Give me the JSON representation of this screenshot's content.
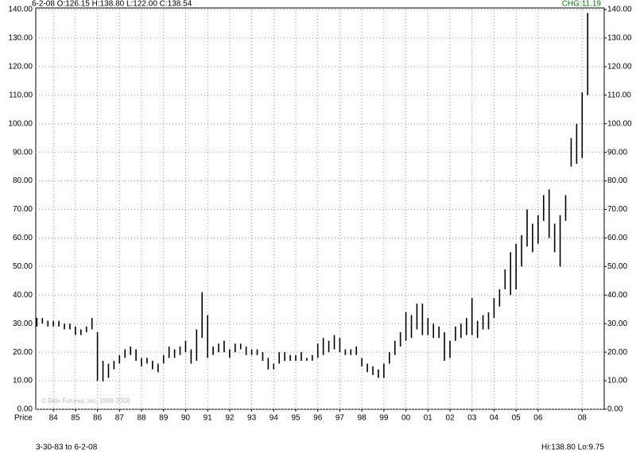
{
  "header": {
    "quote": "6-2-08 O:126.15 H:138.80 L:122.00 C:138.54",
    "change": "CHG:11.19"
  },
  "footer": {
    "range": "3-30-83 to 6-2-08",
    "extremes": "Hi:138.80 Lo:9.75"
  },
  "watermark": "© Bitte Futures, Inc. 1998-2008",
  "chart_data": {
    "type": "range-bar",
    "y_label": "Price",
    "color": "#000000",
    "grid": true,
    "x": [
      1983.25,
      1983.5,
      1983.75,
      1984.0,
      1984.25,
      1984.5,
      1984.75,
      1985.0,
      1985.25,
      1985.5,
      1985.75,
      1986.0,
      1986.25,
      1986.5,
      1986.75,
      1987.0,
      1987.25,
      1987.5,
      1987.75,
      1988.0,
      1988.25,
      1988.5,
      1988.75,
      1989.0,
      1989.25,
      1989.5,
      1989.75,
      1990.0,
      1990.25,
      1990.5,
      1990.75,
      1991.0,
      1991.25,
      1991.5,
      1991.75,
      1992.0,
      1992.25,
      1992.5,
      1992.75,
      1993.0,
      1993.25,
      1993.5,
      1993.75,
      1994.0,
      1994.25,
      1994.5,
      1994.75,
      1995.0,
      1995.25,
      1995.5,
      1995.75,
      1996.0,
      1996.25,
      1996.5,
      1996.75,
      1997.0,
      1997.25,
      1997.5,
      1997.75,
      1998.0,
      1998.25,
      1998.5,
      1998.75,
      1999.0,
      1999.25,
      1999.5,
      1999.75,
      2000.0,
      2000.25,
      2000.5,
      2000.75,
      2001.0,
      2001.25,
      2001.5,
      2001.75,
      2002.0,
      2002.25,
      2002.5,
      2002.75,
      2003.0,
      2003.25,
      2003.5,
      2003.75,
      2004.0,
      2004.25,
      2004.5,
      2004.75,
      2005.0,
      2005.25,
      2005.5,
      2005.75,
      2006.0,
      2006.25,
      2006.5,
      2006.75,
      2007.0,
      2007.25,
      2007.5,
      2007.75,
      2008.0,
      2008.25
    ],
    "high": [
      32,
      32,
      31,
      31,
      31,
      30,
      30,
      29,
      28,
      29,
      32,
      27,
      17,
      16,
      17,
      19,
      21,
      22,
      21,
      18,
      18,
      17,
      16,
      19,
      22,
      21,
      22,
      24,
      21,
      28,
      41,
      33,
      22,
      23,
      24,
      21,
      23,
      23,
      22,
      21,
      21,
      20,
      18,
      16,
      20,
      20,
      19,
      19,
      20,
      18,
      19,
      23,
      25,
      24,
      26,
      25,
      21,
      21,
      22,
      18,
      16,
      15,
      14,
      16,
      20,
      24,
      27,
      34,
      33,
      37,
      37,
      32,
      30,
      29,
      27,
      24,
      29,
      30,
      32,
      39,
      31,
      33,
      34,
      39,
      42,
      49,
      55,
      58,
      61,
      70,
      65,
      68,
      75,
      77,
      65,
      68,
      75,
      95,
      100,
      111,
      138.8
    ],
    "low": [
      29,
      30,
      29,
      29,
      29,
      28,
      28,
      26,
      26,
      27,
      28,
      10,
      9.75,
      11,
      14,
      16,
      18,
      19,
      17,
      15,
      16,
      14,
      13,
      16,
      18,
      18,
      19,
      20,
      16,
      17,
      25,
      18,
      19,
      20,
      20,
      18,
      20,
      21,
      19,
      19,
      19,
      17,
      14,
      14,
      16,
      17,
      17,
      17,
      17,
      17,
      17,
      18,
      19,
      20,
      21,
      20,
      19,
      19,
      19,
      15,
      13,
      12,
      11,
      11,
      16,
      19,
      22,
      24,
      25,
      28,
      26,
      26,
      25,
      25,
      17,
      18,
      24,
      25,
      26,
      26,
      25,
      28,
      28,
      32,
      36,
      42,
      40,
      42,
      50,
      57,
      55,
      58,
      66,
      60,
      55,
      50,
      66,
      85,
      86,
      88,
      110
    ],
    "xlim": [
      1983.2,
      2009.0
    ],
    "xticks": [
      {
        "value": 1984,
        "label": "84"
      },
      {
        "value": 1985,
        "label": "85"
      },
      {
        "value": 1986,
        "label": "86"
      },
      {
        "value": 1987,
        "label": "87"
      },
      {
        "value": 1988,
        "label": "88"
      },
      {
        "value": 1989,
        "label": "89"
      },
      {
        "value": 1990,
        "label": "90"
      },
      {
        "value": 1991,
        "label": "91"
      },
      {
        "value": 1992,
        "label": "92"
      },
      {
        "value": 1993,
        "label": "93"
      },
      {
        "value": 1994,
        "label": "94"
      },
      {
        "value": 1995,
        "label": "95"
      },
      {
        "value": 1996,
        "label": "96"
      },
      {
        "value": 1997,
        "label": "97"
      },
      {
        "value": 1998,
        "label": "98"
      },
      {
        "value": 1999,
        "label": "99"
      },
      {
        "value": 2000,
        "label": "00"
      },
      {
        "value": 2001,
        "label": "01"
      },
      {
        "value": 2002,
        "label": "02"
      },
      {
        "value": 2003,
        "label": "03"
      },
      {
        "value": 2004,
        "label": "04"
      },
      {
        "value": 2005,
        "label": "05"
      },
      {
        "value": 2006,
        "label": "06"
      },
      {
        "value": 2008,
        "label": "08"
      }
    ],
    "ylim": [
      0,
      140
    ],
    "yticks": [
      {
        "value": 0,
        "label": "0.00"
      },
      {
        "value": 10,
        "label": "10.00"
      },
      {
        "value": 20,
        "label": "20.00"
      },
      {
        "value": 30,
        "label": "30.00"
      },
      {
        "value": 40,
        "label": "40.00"
      },
      {
        "value": 50,
        "label": "50.00"
      },
      {
        "value": 60,
        "label": "60.00"
      },
      {
        "value": 70,
        "label": "70.00"
      },
      {
        "value": 80,
        "label": "80.00"
      },
      {
        "value": 90,
        "label": "90.00"
      },
      {
        "value": 100,
        "label": "100.00"
      },
      {
        "value": 110,
        "label": "110.00"
      },
      {
        "value": 120,
        "label": "120.00"
      },
      {
        "value": 130,
        "label": "130.00"
      },
      {
        "value": 140,
        "label": "140.00"
      }
    ]
  }
}
